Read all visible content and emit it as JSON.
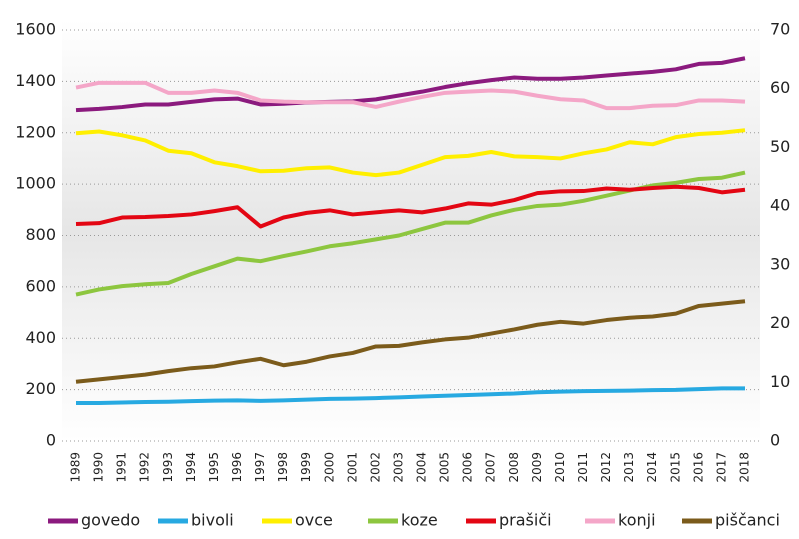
{
  "chart_data": {
    "type": "line",
    "categories": [
      "1989",
      "1990",
      "1991",
      "1992",
      "1993",
      "1994",
      "1995",
      "1996",
      "1997",
      "1998",
      "1999",
      "2000",
      "2001",
      "2002",
      "2003",
      "2004",
      "2005",
      "2006",
      "2007",
      "2008",
      "2009",
      "2010",
      "2011",
      "2012",
      "2013",
      "2014",
      "2015",
      "2016",
      "2017",
      "2018"
    ],
    "series": [
      {
        "name": "govedo",
        "color": "#8b1a7e",
        "values": [
          1288,
          1293,
          1300,
          1310,
          1310,
          1320,
          1330,
          1333,
          1310,
          1313,
          1318,
          1320,
          1322,
          1330,
          1345,
          1360,
          1378,
          1393,
          1405,
          1415,
          1410,
          1410,
          1415,
          1423,
          1430,
          1437,
          1447,
          1468,
          1472,
          1490
        ]
      },
      {
        "name": "bivoli",
        "color": "#27a9e1",
        "values": [
          148,
          148,
          150,
          152,
          153,
          155,
          157,
          158,
          156,
          158,
          161,
          164,
          165,
          167,
          170,
          173,
          176,
          179,
          182,
          185,
          190,
          192,
          194,
          195,
          196,
          198,
          199,
          202,
          205,
          205
        ]
      },
      {
        "name": "ovce",
        "color": "#ffef00",
        "values": [
          1198,
          1205,
          1190,
          1170,
          1130,
          1120,
          1085,
          1070,
          1050,
          1052,
          1062,
          1065,
          1045,
          1035,
          1045,
          1075,
          1105,
          1110,
          1125,
          1108,
          1105,
          1100,
          1120,
          1135,
          1163,
          1155,
          1183,
          1195,
          1200,
          1210
        ]
      },
      {
        "name": "koze",
        "color": "#8dc63f",
        "values": [
          570,
          590,
          603,
          610,
          615,
          650,
          680,
          710,
          700,
          720,
          738,
          758,
          770,
          785,
          800,
          825,
          850,
          850,
          878,
          900,
          915,
          920,
          935,
          955,
          975,
          995,
          1005,
          1020,
          1025,
          1045
        ]
      },
      {
        "name": "prašiči",
        "color": "#e30613",
        "values": [
          845,
          848,
          870,
          872,
          876,
          882,
          895,
          910,
          835,
          870,
          888,
          898,
          882,
          890,
          898,
          890,
          905,
          925,
          920,
          938,
          965,
          972,
          973,
          983,
          978,
          985,
          990,
          985,
          968,
          978
        ]
      },
      {
        "name": "konji",
        "color": "#f4a6c8",
        "axis": "y2",
        "values": [
          60.2,
          61.0,
          61.0,
          61.0,
          59.3,
          59.3,
          59.7,
          59.3,
          58.0,
          57.8,
          57.7,
          57.7,
          57.7,
          56.9,
          57.8,
          58.6,
          59.3,
          59.5,
          59.7,
          59.5,
          58.8,
          58.2,
          58.0,
          56.7,
          56.7,
          57.1,
          57.2,
          58.0,
          58.0,
          57.8
        ]
      },
      {
        "name": "piščanci",
        "color": "#7b5b1b",
        "axis": "y2",
        "values": [
          10.1,
          10.5,
          10.9,
          11.3,
          11.9,
          12.4,
          12.7,
          13.4,
          14.0,
          12.9,
          13.5,
          14.4,
          15.0,
          16.1,
          16.2,
          16.8,
          17.3,
          17.6,
          18.3,
          19.0,
          19.8,
          20.3,
          20.0,
          20.6,
          21.0,
          21.2,
          21.7,
          23.0,
          23.4,
          23.8
        ]
      }
    ],
    "ylim": [
      0,
      1600
    ],
    "yticks": [
      0,
      200,
      400,
      600,
      800,
      1000,
      1200,
      1400,
      1600
    ],
    "y2lim": [
      0,
      70
    ],
    "y2ticks": [
      0,
      10,
      20,
      30,
      40,
      50,
      60,
      70
    ],
    "grid": true,
    "legend": "bottom"
  }
}
